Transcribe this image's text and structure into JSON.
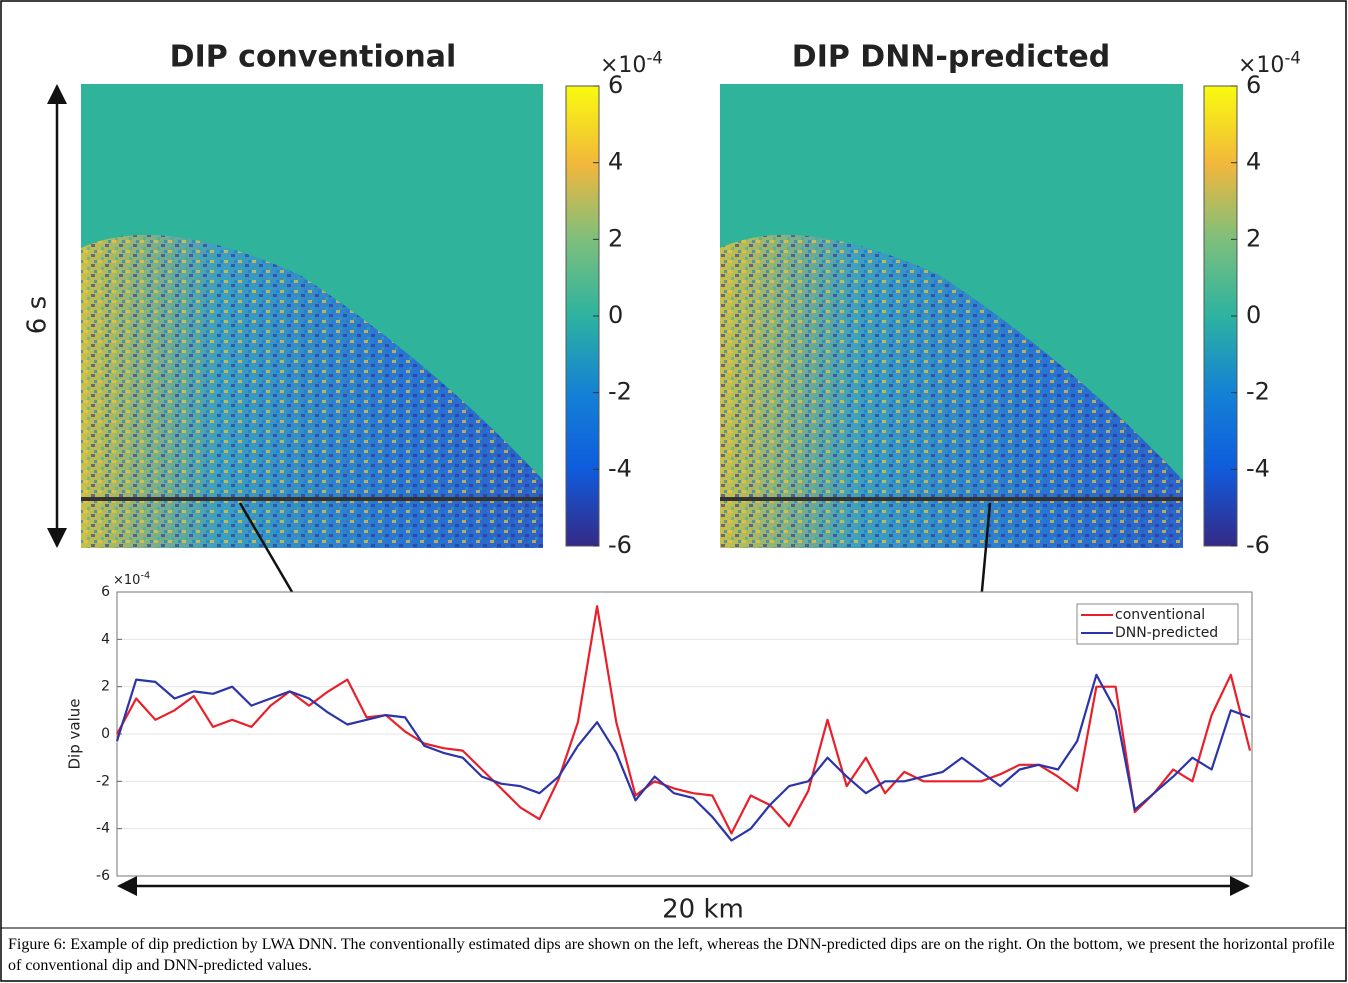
{
  "panels": [
    {
      "title": "DIP conventional",
      "colorbar": {
        "lim": [
          -6,
          6
        ],
        "ticks": [
          6,
          4,
          2,
          0,
          -2,
          -4,
          -6
        ],
        "multiplier": {
          "base": "×10",
          "exponent": "-4"
        }
      }
    },
    {
      "title": "DIP DNN-predicted",
      "colorbar": {
        "lim": [
          -6,
          6
        ],
        "ticks": [
          6,
          4,
          2,
          0,
          -2,
          -4,
          -6
        ],
        "multiplier": {
          "base": "×10",
          "exponent": "-4"
        }
      }
    }
  ],
  "annotations": {
    "height": "6 s",
    "width": "20 km"
  },
  "chart_data": {
    "type": "line",
    "ylabel": "Dip value",
    "ylim": [
      -6,
      6
    ],
    "yticks": [
      6,
      4,
      2,
      0,
      -2,
      -4,
      -6
    ],
    "multiplier": {
      "base": "×10",
      "exponent": "-4"
    },
    "grid": true,
    "legend": "upper right",
    "series": [
      {
        "name": "conventional",
        "color": "#e8202a",
        "values": [
          0.0,
          1.5,
          0.6,
          1.0,
          1.6,
          0.3,
          0.6,
          0.3,
          1.2,
          1.8,
          1.2,
          1.8,
          2.3,
          0.7,
          0.8,
          0.1,
          -0.4,
          -0.6,
          -0.7,
          -1.5,
          -2.3,
          -3.1,
          -3.6,
          -1.9,
          0.5,
          5.4,
          0.5,
          -2.6,
          -2.0,
          -2.3,
          -2.5,
          -2.6,
          -4.2,
          -2.6,
          -3.0,
          -3.9,
          -2.4,
          0.6,
          -2.2,
          -1.0,
          -2.5,
          -1.6,
          -2.0,
          -2.0,
          -2.0,
          -2.0,
          -1.7,
          -1.3,
          -1.3,
          -1.8,
          -2.4,
          2.0,
          2.0,
          -3.3,
          -2.5,
          -1.5,
          -2.0,
          0.8,
          2.5,
          -0.7
        ]
      },
      {
        "name": "DNN-predicted",
        "color": "#2b35a8",
        "values": [
          -0.3,
          2.3,
          2.2,
          1.5,
          1.8,
          1.7,
          2.0,
          1.2,
          1.5,
          1.8,
          1.5,
          0.9,
          0.4,
          0.6,
          0.8,
          0.7,
          -0.5,
          -0.8,
          -1.0,
          -1.8,
          -2.1,
          -2.2,
          -2.5,
          -1.8,
          -0.5,
          0.5,
          -0.8,
          -2.8,
          -1.8,
          -2.5,
          -2.7,
          -3.5,
          -4.5,
          -4.0,
          -3.0,
          -2.2,
          -2.0,
          -1.0,
          -1.8,
          -2.5,
          -2.0,
          -2.0,
          -1.8,
          -1.6,
          -1.0,
          -1.6,
          -2.2,
          -1.5,
          -1.3,
          -1.5,
          -0.3,
          2.5,
          1.0,
          -3.2,
          -2.5,
          -1.8,
          -1.0,
          -1.5,
          1.0,
          0.7
        ]
      }
    ]
  },
  "caption": "Figure 6: Example of dip prediction by LWA DNN. The conventionally estimated dips are shown on the left, whereas the DNN-predicted dips are on the right. On the bottom, we present the horizontal profile of conventional dip and DNN-predicted values."
}
